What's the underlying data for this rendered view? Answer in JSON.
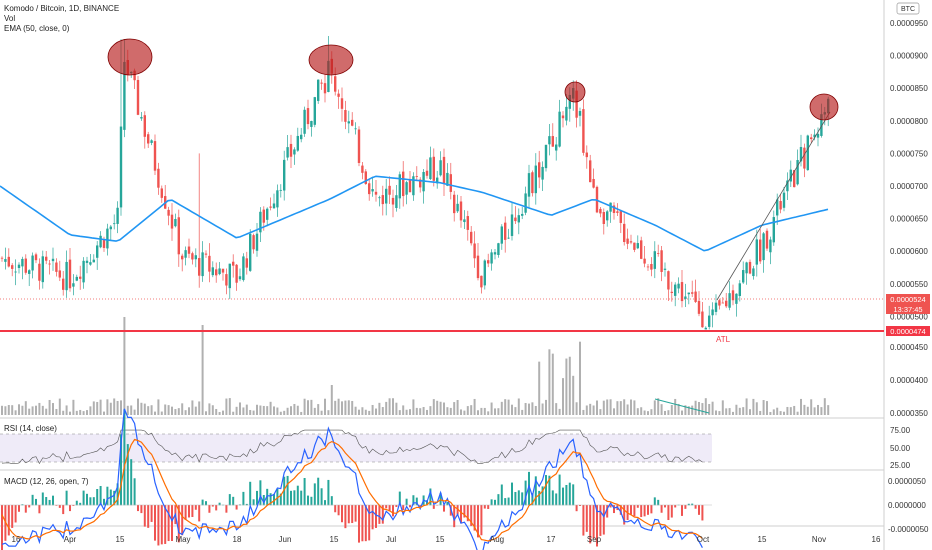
{
  "header": {
    "symbol_line": "Komodo / Bitcoin, 1D, BINANCE",
    "vol_label": "Vol",
    "ema_label": "EMA (50, close, 0)",
    "currency_badge": "BTC"
  },
  "price_axis": {
    "ticks": [
      "0.0000950",
      "0.0000900",
      "0.0000850",
      "0.0000800",
      "0.0000750",
      "0.0000700",
      "0.0000650",
      "0.0000600",
      "0.0000550",
      "0.0000500",
      "0.0000450",
      "0.0000400",
      "0.0000350"
    ],
    "last_price_label": "0.0000524",
    "countdown_label": "13:37:45",
    "atl_price_label": "0.0000474",
    "atl_text": "ATL"
  },
  "rsi": {
    "title": "RSI (14, close)",
    "ticks": [
      "75.00",
      "50.00",
      "25.00"
    ]
  },
  "macd": {
    "title": "MACD (12, 26, open, 7)",
    "ticks": [
      "0.0000050",
      "0.0000000",
      "-0.0000050"
    ]
  },
  "time_axis": {
    "ticks": [
      "16",
      "Apr",
      "15",
      "May",
      "18",
      "Jun",
      "15",
      "Jul",
      "15",
      "Aug",
      "17",
      "Sep",
      "Oct",
      "15",
      "Nov",
      "16"
    ]
  },
  "colors": {
    "up": "#26a69a",
    "down": "#ef5350",
    "ema": "#2196f3",
    "atl_line": "#f23645",
    "macd_line": "#2962ff",
    "signal_line": "#ff6d00",
    "rsi_band": "#7e57c2",
    "circle_fill": "#b71c1c"
  },
  "chart_data": {
    "type": "candlestick",
    "pair": "KMD/BTC",
    "timeframe": "1D",
    "exchange": "BINANCE",
    "ylim": [
      4.74e-05,
      9.5e-05
    ],
    "atl_level": 4.74e-05,
    "last_price": 5.24e-05,
    "series_close_by_period": [
      {
        "date": "Mar 16",
        "value": 5.9e-05
      },
      {
        "date": "Apr 1",
        "value": 5.6e-05
      },
      {
        "date": "Apr 15",
        "value": 6.5e-05
      },
      {
        "date": "Apr 17",
        "value": 8.95e-05
      },
      {
        "date": "May 1",
        "value": 5.9e-05
      },
      {
        "date": "May 18",
        "value": 5.6e-05
      },
      {
        "date": "Jun 1",
        "value": 7.3e-05
      },
      {
        "date": "Jun 15",
        "value": 8.8e-05
      },
      {
        "date": "Jul 1",
        "value": 6.8e-05
      },
      {
        "date": "Jul 15",
        "value": 7.3e-05
      },
      {
        "date": "Aug 1",
        "value": 5.6e-05
      },
      {
        "date": "Aug 17",
        "value": 8.4e-05
      },
      {
        "date": "Sep 1",
        "value": 6.8e-05
      },
      {
        "date": "Sep 15",
        "value": 5.8e-05
      },
      {
        "date": "Oct 1",
        "value": 4.9e-05
      },
      {
        "date": "Oct 15",
        "value": 6.1e-05
      },
      {
        "date": "Nov 1",
        "value": 8.2e-05
      }
    ],
    "ema50": [
      {
        "date": "Mar 16",
        "value": 7e-05
      },
      {
        "date": "Apr 1",
        "value": 6.25e-05
      },
      {
        "date": "Apr 15",
        "value": 6.15e-05
      },
      {
        "date": "May 1",
        "value": 6.8e-05
      },
      {
        "date": "May 18",
        "value": 6.2e-05
      },
      {
        "date": "Jun 15",
        "value": 6.8e-05
      },
      {
        "date": "Jul 1",
        "value": 7.15e-05
      },
      {
        "date": "Jul 15",
        "value": 7.05e-05
      },
      {
        "date": "Aug 1",
        "value": 6.9e-05
      },
      {
        "date": "Aug 17",
        "value": 6.55e-05
      },
      {
        "date": "Sep 1",
        "value": 6.8e-05
      },
      {
        "date": "Sep 15",
        "value": 6.4e-05
      },
      {
        "date": "Oct 1",
        "value": 6e-05
      },
      {
        "date": "Oct 15",
        "value": 6.4e-05
      },
      {
        "date": "Nov 1",
        "value": 6.65e-05
      }
    ],
    "highlighted_peaks": [
      {
        "date": "Apr 17",
        "value": 9.05e-05
      },
      {
        "date": "Jun 14",
        "value": 9.05e-05
      },
      {
        "date": "Aug 21",
        "value": 8.45e-05
      },
      {
        "date": "Nov 2",
        "value": 8.2e-05
      }
    ]
  }
}
